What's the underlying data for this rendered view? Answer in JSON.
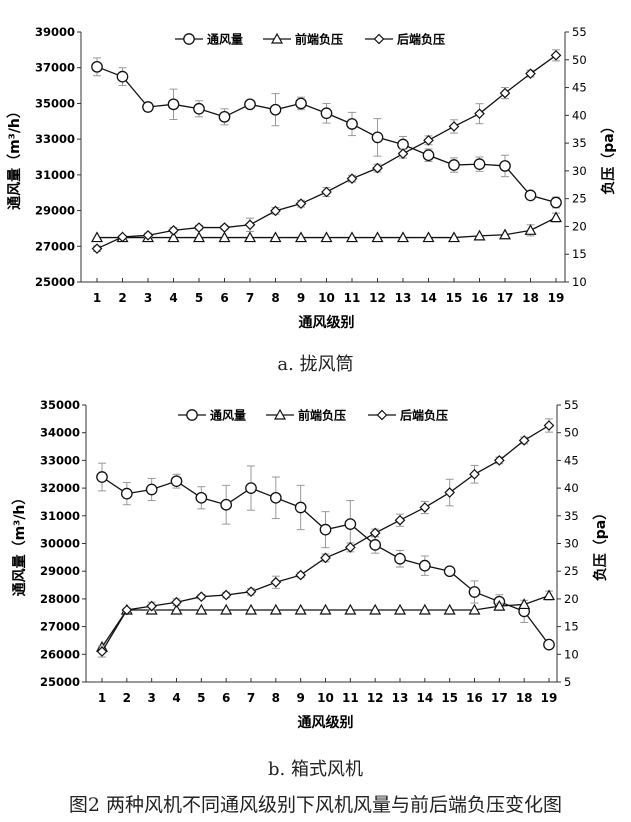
{
  "figure_caption": "图2 两种风机不同通风级别下风机风量与前后端负压变化图",
  "chart_data": [
    {
      "type": "line",
      "caption": "a.  拢风筒",
      "xlabel": "通风级别",
      "ylabel": "通风量（m³/h）",
      "y2label": "负压（pa）",
      "categories": [
        1,
        2,
        3,
        4,
        5,
        6,
        7,
        8,
        9,
        10,
        11,
        12,
        13,
        14,
        15,
        16,
        17,
        18,
        19
      ],
      "ylim": [
        25000,
        39000
      ],
      "yticks": [
        25000,
        27000,
        29000,
        31000,
        33000,
        35000,
        37000,
        39000
      ],
      "y2lim": [
        10,
        55
      ],
      "y2ticks": [
        10,
        15,
        20,
        25,
        30,
        35,
        40,
        45,
        50,
        55
      ],
      "legend_position": "top-center",
      "grid": false,
      "series": [
        {
          "name": "通风量",
          "axis": "left",
          "marker": "circle",
          "values": [
            37050,
            36500,
            34800,
            34950,
            34700,
            34250,
            34950,
            34650,
            35000,
            34450,
            33850,
            33100,
            32700,
            32100,
            31550,
            31600,
            31500,
            29850,
            29450
          ],
          "errors": [
            500,
            500,
            250,
            850,
            450,
            450,
            150,
            900,
            350,
            550,
            650,
            1050,
            450,
            350,
            400,
            400,
            600,
            150,
            300
          ]
        },
        {
          "name": "前端负压",
          "axis": "right",
          "marker": "triangle",
          "values": [
            18,
            18,
            18,
            18,
            18,
            18,
            18,
            18,
            18,
            18,
            18,
            18,
            18,
            18,
            18,
            18.3,
            18.5,
            19.3,
            21.6
          ],
          "errors": [
            0,
            0,
            0,
            0,
            0,
            0,
            0,
            0,
            0,
            0,
            0,
            0,
            0,
            0,
            0,
            0,
            0,
            1,
            0.8
          ]
        },
        {
          "name": "后端负压",
          "axis": "right",
          "marker": "diamond",
          "values": [
            16.0,
            18.1,
            18.4,
            19.3,
            19.8,
            19.8,
            20.3,
            22.8,
            24.1,
            26.2,
            28.6,
            30.5,
            33.1,
            35.5,
            38.0,
            40.3,
            44.0,
            47.5,
            50.8
          ],
          "errors": [
            0.5,
            0.3,
            0.4,
            0.5,
            0.4,
            0.4,
            1.2,
            0.6,
            0.6,
            0.8,
            0.6,
            0.7,
            0.8,
            0.8,
            1.2,
            1.8,
            1.0,
            0.6,
            1.0
          ]
        }
      ]
    },
    {
      "type": "line",
      "caption": "b.  箱式风机",
      "xlabel": "通风级别",
      "ylabel": "通风量（m³/h）",
      "y2label": "负压（pa）",
      "categories": [
        1,
        2,
        3,
        4,
        5,
        6,
        7,
        8,
        9,
        10,
        11,
        12,
        13,
        14,
        15,
        16,
        17,
        18,
        19
      ],
      "ylim": [
        25000,
        35000
      ],
      "yticks": [
        25000,
        26000,
        27000,
        28000,
        29000,
        30000,
        31000,
        32000,
        33000,
        34000,
        35000
      ],
      "y2lim": [
        5,
        55
      ],
      "y2ticks": [
        5,
        10,
        15,
        20,
        25,
        30,
        35,
        40,
        45,
        50,
        55
      ],
      "legend_position": "top-center",
      "grid": false,
      "series": [
        {
          "name": "通风量",
          "axis": "left",
          "marker": "circle",
          "values": [
            32400,
            31800,
            31950,
            32250,
            31650,
            31400,
            32000,
            31650,
            31300,
            30500,
            30700,
            29950,
            29450,
            29200,
            29000,
            28250,
            27900,
            27550,
            26350
          ],
          "errors": [
            500,
            400,
            400,
            250,
            400,
            700,
            800,
            750,
            800,
            650,
            850,
            300,
            300,
            350,
            0,
            400,
            250,
            400,
            0
          ]
        },
        {
          "name": "前端负压",
          "axis": "right",
          "marker": "triangle",
          "values": [
            11.3,
            18,
            18,
            18,
            18,
            18,
            18,
            18,
            18,
            18,
            18,
            18,
            18,
            18,
            18,
            18,
            18.7,
            19.0,
            20.6
          ],
          "errors": [
            0,
            0,
            0,
            0,
            0,
            0,
            0,
            0,
            0,
            0,
            0,
            0,
            0,
            0,
            0,
            0,
            0.5,
            0,
            0.8
          ]
        },
        {
          "name": "后端负压",
          "axis": "right",
          "marker": "diamond",
          "values": [
            10.5,
            18.0,
            18.7,
            19.4,
            20.4,
            20.7,
            21.3,
            23.0,
            24.3,
            27.4,
            29.3,
            31.9,
            34.2,
            36.5,
            39.2,
            42.5,
            45.0,
            48.6,
            51.3
          ],
          "errors": [
            1.0,
            0.3,
            0.7,
            0.6,
            0.4,
            0.5,
            0.6,
            1.1,
            0.5,
            0.7,
            0.8,
            0.7,
            1.1,
            1.1,
            2.4,
            1.6,
            0.6,
            0.6,
            1.2
          ]
        }
      ]
    }
  ]
}
